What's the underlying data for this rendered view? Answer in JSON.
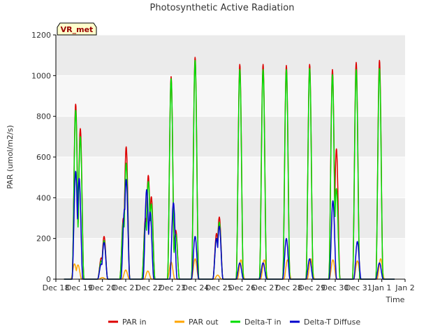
{
  "chart_data": {
    "type": "line",
    "title": "Photosynthetic Active Radiation",
    "xlabel": "Time",
    "ylabel": "PAR (umol/m2/s)",
    "ylim": [
      0,
      1200
    ],
    "xlim": [
      0,
      15
    ],
    "x_unit": "days since Dec 18",
    "yticks": [
      0,
      200,
      400,
      600,
      800,
      1000,
      1200
    ],
    "xticks": [
      {
        "x": 0,
        "label": "Dec 18"
      },
      {
        "x": 1,
        "label": "Dec 19"
      },
      {
        "x": 2,
        "label": "Dec 20"
      },
      {
        "x": 3,
        "label": "Dec 21"
      },
      {
        "x": 4,
        "label": "Dec 22"
      },
      {
        "x": 5,
        "label": "Dec 23"
      },
      {
        "x": 6,
        "label": "Dec 24"
      },
      {
        "x": 7,
        "label": "Dec 25"
      },
      {
        "x": 8,
        "label": "Dec 26"
      },
      {
        "x": 9,
        "label": "Dec 27"
      },
      {
        "x": 10,
        "label": "Dec 28"
      },
      {
        "x": 11,
        "label": "Dec 29"
      },
      {
        "x": 12,
        "label": "Dec 30"
      },
      {
        "x": 13,
        "label": "Dec 31"
      },
      {
        "x": 14,
        "label": "Jan 1"
      },
      {
        "x": 15,
        "label": "Jan 2"
      }
    ],
    "grid": "horizontal bands",
    "legend_position": "bottom",
    "site_label": "VR_met",
    "series": [
      {
        "name": "PAR in",
        "color": "#dd0000",
        "peaks": [
          [
            0.85,
            860
          ],
          [
            1.05,
            740
          ],
          [
            1.95,
            105
          ],
          [
            2.07,
            210
          ],
          [
            2.9,
            300
          ],
          [
            3.02,
            650
          ],
          [
            3.85,
            300
          ],
          [
            3.97,
            510
          ],
          [
            4.1,
            405
          ],
          [
            4.95,
            995
          ],
          [
            5.15,
            240
          ],
          [
            5.98,
            1090
          ],
          [
            6.9,
            225
          ],
          [
            7.02,
            305
          ],
          [
            7.9,
            1055
          ],
          [
            8.9,
            1055
          ],
          [
            9.9,
            1050
          ],
          [
            10.9,
            1055
          ],
          [
            11.88,
            1030
          ],
          [
            12.05,
            640
          ],
          [
            12.9,
            1065
          ],
          [
            13.9,
            1075
          ]
        ]
      },
      {
        "name": "PAR out",
        "color": "#ffa500",
        "peaks": [
          [
            0.8,
            75
          ],
          [
            0.95,
            70
          ],
          [
            2.0,
            8
          ],
          [
            3.0,
            45
          ],
          [
            3.95,
            40
          ],
          [
            4.95,
            85
          ],
          [
            5.98,
            100
          ],
          [
            6.95,
            20
          ],
          [
            7.95,
            95
          ],
          [
            8.95,
            95
          ],
          [
            9.95,
            95
          ],
          [
            10.95,
            100
          ],
          [
            11.9,
            95
          ],
          [
            12.95,
            90
          ],
          [
            13.95,
            100
          ]
        ]
      },
      {
        "name": "Delta-T in",
        "color": "#00dd00",
        "peaks": [
          [
            0.85,
            830
          ],
          [
            1.05,
            700
          ],
          [
            1.95,
            90
          ],
          [
            2.07,
            190
          ],
          [
            2.9,
            280
          ],
          [
            3.02,
            570
          ],
          [
            3.85,
            280
          ],
          [
            3.97,
            480
          ],
          [
            4.1,
            370
          ],
          [
            4.95,
            985
          ],
          [
            5.15,
            220
          ],
          [
            5.98,
            1075
          ],
          [
            6.9,
            200
          ],
          [
            7.02,
            280
          ],
          [
            7.9,
            1030
          ],
          [
            8.9,
            1030
          ],
          [
            9.9,
            1030
          ],
          [
            10.9,
            1035
          ],
          [
            11.88,
            1005
          ],
          [
            12.05,
            445
          ],
          [
            12.9,
            1030
          ],
          [
            13.9,
            1035
          ]
        ]
      },
      {
        "name": "Delta-T Diffuse",
        "color": "#0000cc",
        "peaks": [
          [
            0.85,
            530
          ],
          [
            1.0,
            495
          ],
          [
            1.95,
            75
          ],
          [
            2.07,
            180
          ],
          [
            2.95,
            345
          ],
          [
            3.02,
            490
          ],
          [
            3.9,
            440
          ],
          [
            4.05,
            330
          ],
          [
            5.05,
            375
          ],
          [
            5.98,
            210
          ],
          [
            6.9,
            200
          ],
          [
            7.02,
            260
          ],
          [
            7.9,
            80
          ],
          [
            8.9,
            80
          ],
          [
            9.9,
            200
          ],
          [
            10.9,
            100
          ],
          [
            11.9,
            385
          ],
          [
            12.95,
            185
          ],
          [
            13.9,
            80
          ]
        ]
      }
    ]
  }
}
